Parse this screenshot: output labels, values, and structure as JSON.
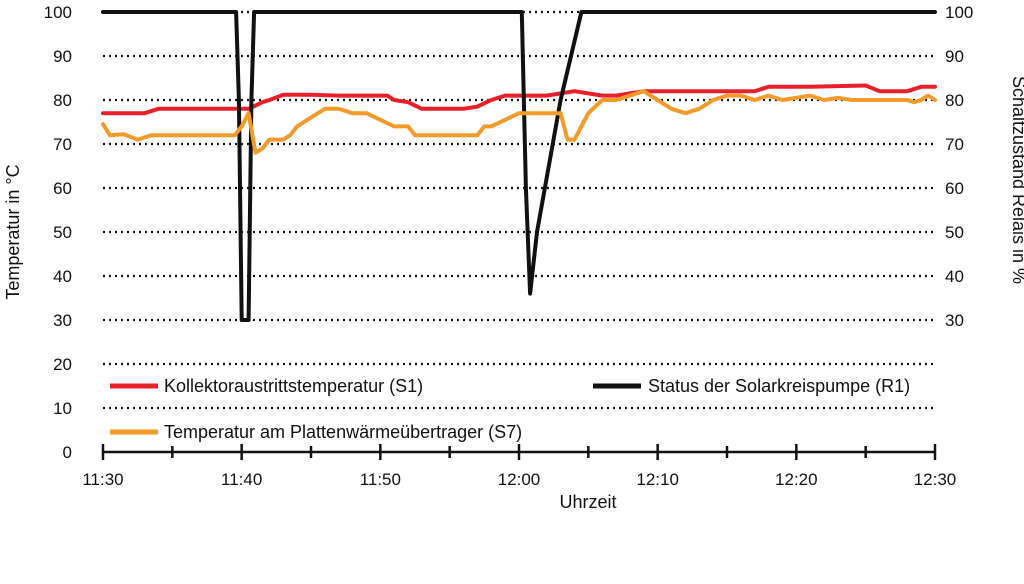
{
  "chart_data": {
    "type": "line",
    "title": "",
    "xlabel": "Uhrzeit",
    "ylabel_left": "Temperatur in °C",
    "ylabel_right": "Schaltzustand Relais in %",
    "x_ticks": [
      "11:30",
      "11:40",
      "11:50",
      "12:00",
      "12:10",
      "12:20",
      "12:30"
    ],
    "y_ticks_left": [
      "0",
      "10",
      "20",
      "30",
      "40",
      "50",
      "60",
      "70",
      "80",
      "90",
      "100"
    ],
    "y_ticks_right": [
      "30",
      "40",
      "50",
      "60",
      "70",
      "80",
      "90",
      "100"
    ],
    "xlim_minutes": [
      0,
      60
    ],
    "ylim_left": [
      0,
      100
    ],
    "ylim_right": [
      0,
      100
    ],
    "grid": "dotted horizontal",
    "legend": "inside bottom",
    "series": [
      {
        "name": "Kollektoraustrittstemperatur (S1)",
        "axis": "left",
        "color": "#e8202a",
        "points": [
          [
            0,
            77
          ],
          [
            3,
            77
          ],
          [
            4,
            78
          ],
          [
            6,
            78
          ],
          [
            7,
            78
          ],
          [
            9.5,
            78
          ],
          [
            10.5,
            78
          ],
          [
            11.5,
            79.5
          ],
          [
            12,
            80
          ],
          [
            13,
            81.2
          ],
          [
            15,
            81.2
          ],
          [
            17,
            81
          ],
          [
            19,
            81
          ],
          [
            20.5,
            81
          ],
          [
            21,
            80
          ],
          [
            22,
            79.5
          ],
          [
            23,
            78
          ],
          [
            24,
            78
          ],
          [
            26,
            78
          ],
          [
            27,
            78.5
          ],
          [
            28,
            80
          ],
          [
            29,
            81
          ],
          [
            31,
            81
          ],
          [
            32,
            81
          ],
          [
            33,
            81.5
          ],
          [
            34,
            82
          ],
          [
            35,
            81.5
          ],
          [
            36,
            81
          ],
          [
            37,
            81
          ],
          [
            38,
            81.5
          ],
          [
            39,
            82
          ],
          [
            41,
            82
          ],
          [
            44,
            82
          ],
          [
            47,
            82
          ],
          [
            48,
            83
          ],
          [
            51,
            83
          ],
          [
            55,
            83.3
          ],
          [
            56,
            82
          ],
          [
            58,
            82
          ],
          [
            59,
            83
          ],
          [
            60,
            83
          ]
        ]
      },
      {
        "name": "Status der Solarkreispumpe (R1)",
        "axis": "right",
        "color": "#111111",
        "points": [
          [
            0,
            100
          ],
          [
            9.6,
            100
          ],
          [
            9.8,
            80
          ],
          [
            10,
            30
          ],
          [
            10.5,
            30
          ],
          [
            10.7,
            80
          ],
          [
            10.9,
            100
          ],
          [
            30.2,
            100
          ],
          [
            30.5,
            60
          ],
          [
            30.8,
            36
          ],
          [
            31.3,
            50
          ],
          [
            33,
            80
          ],
          [
            34.5,
            100
          ],
          [
            60,
            100
          ]
        ]
      },
      {
        "name": "Temperatur am Plattenwärmeübertrager (S7)",
        "axis": "left",
        "color": "#f39a2a",
        "points": [
          [
            0,
            74.5
          ],
          [
            0.5,
            72
          ],
          [
            1.5,
            72.2
          ],
          [
            2.5,
            71
          ],
          [
            3,
            71.5
          ],
          [
            3.5,
            72
          ],
          [
            4,
            72
          ],
          [
            9.5,
            72
          ],
          [
            10,
            74
          ],
          [
            10.5,
            77
          ],
          [
            11,
            68
          ],
          [
            11.5,
            69
          ],
          [
            12,
            71
          ],
          [
            13,
            71
          ],
          [
            13.5,
            72
          ],
          [
            14,
            74
          ],
          [
            15,
            76
          ],
          [
            16,
            78
          ],
          [
            17,
            78
          ],
          [
            18,
            77
          ],
          [
            19,
            77
          ],
          [
            20,
            75.5
          ],
          [
            21,
            74
          ],
          [
            22,
            74
          ],
          [
            22.5,
            72
          ],
          [
            25,
            72
          ],
          [
            26,
            72
          ],
          [
            27,
            72
          ],
          [
            27.5,
            74
          ],
          [
            28,
            74
          ],
          [
            29,
            75.5
          ],
          [
            30,
            77
          ],
          [
            32,
            77
          ],
          [
            33,
            77
          ],
          [
            33.5,
            71
          ],
          [
            34,
            71
          ],
          [
            35,
            77
          ],
          [
            36,
            80
          ],
          [
            37,
            80
          ],
          [
            38,
            81
          ],
          [
            39,
            82
          ],
          [
            40,
            80
          ],
          [
            41,
            78
          ],
          [
            42,
            77
          ],
          [
            43,
            78
          ],
          [
            44,
            80
          ],
          [
            45,
            81
          ],
          [
            46,
            81
          ],
          [
            47,
            80
          ],
          [
            48,
            81
          ],
          [
            49,
            80
          ],
          [
            50,
            80.5
          ],
          [
            51,
            81
          ],
          [
            52,
            80
          ],
          [
            53,
            80.5
          ],
          [
            54,
            80
          ],
          [
            55,
            80
          ],
          [
            56,
            80
          ],
          [
            57,
            80
          ],
          [
            58,
            80
          ],
          [
            58.5,
            79.5
          ],
          [
            59,
            80
          ],
          [
            59.5,
            81
          ],
          [
            60,
            80
          ]
        ]
      }
    ]
  }
}
